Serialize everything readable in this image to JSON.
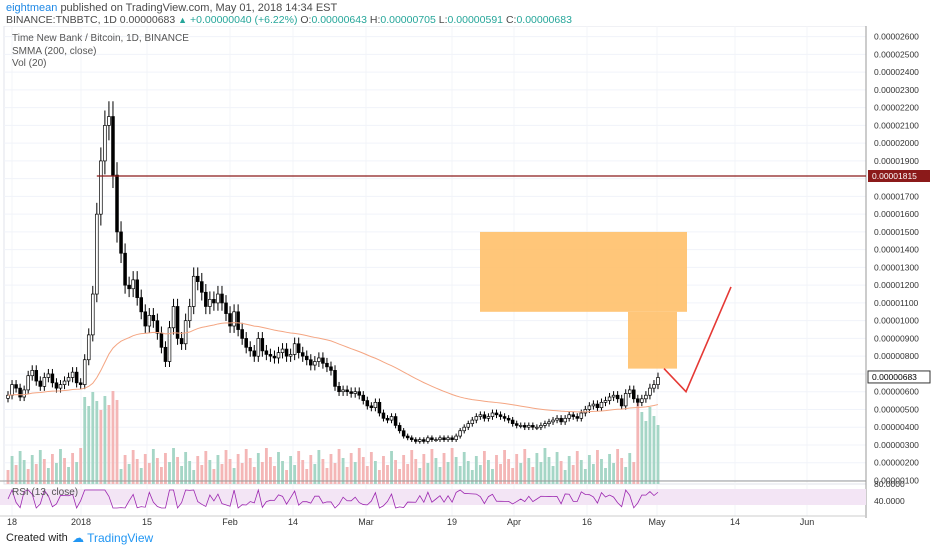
{
  "header": {
    "author": "eightmean",
    "published_text": "published on TradingView.com, May 01, 2018 14:34 EST",
    "symbol_line_prefix": "BINANCE:TNBBTC, 1D  0.00000683",
    "change_text": "+0.00000040 (+6.22%)",
    "o_label": "O:",
    "o_value": "0.00000643",
    "h_label": "H:",
    "h_value": "0.00000705",
    "l_label": "L:",
    "l_value": "0.00000591",
    "c_label": "C:",
    "c_value": "0.00000683"
  },
  "legend": {
    "title": "Time New Bank / Bitcoin, 1D, BINANCE",
    "smma": "SMMA (200, close)",
    "vol": "Vol (20)",
    "rsi": "RSI (13, close)"
  },
  "footer": {
    "created_with": "Created with",
    "brand": "TradingView"
  },
  "colors": {
    "bull_candle": "#ffffff",
    "bear_candle": "#000000",
    "candle_outline": "#000000",
    "vol_up": "#a5d6c6",
    "vol_down": "#f4b6b6",
    "smma": "#f4a582",
    "resistance": "#8b1a1a",
    "zone": "#ffc06a",
    "projection": "#e53935",
    "rsi_line": "#9c27b0",
    "rsi_band": "#f3e5f5",
    "last_price_bg": "#ffffff"
  },
  "chart_data": {
    "type": "candlestick",
    "title": "Time New Bank / Bitcoin, 1D, BINANCE",
    "y_axis": {
      "ticks": [
        "0.00002600",
        "0.00002500",
        "0.00002400",
        "0.00002300",
        "0.00002200",
        "0.00002100",
        "0.00002000",
        "0.00001900",
        "0.00001800",
        "0.00001700",
        "0.00001600",
        "0.00001500",
        "0.00001400",
        "0.00001300",
        "0.00001200",
        "0.00001100",
        "0.00001000",
        "0.00000900",
        "0.00000800",
        "0.00000700",
        "0.00000600",
        "0.00000500",
        "0.00000400",
        "0.00000300",
        "0.00000200",
        "0.00000100"
      ],
      "range": [
        8e-07,
        2.66e-05
      ]
    },
    "x_axis": {
      "ticks": [
        "18",
        "2018",
        "15",
        "Feb",
        "14",
        "Mar",
        "19",
        "Apr",
        "16",
        "May",
        "14",
        "Jun"
      ]
    },
    "resistance_level": {
      "value": 1.815e-05,
      "label": "0.00001815"
    },
    "last_price": {
      "value": 6.83e-06,
      "label": "0.00000683"
    },
    "drawn_zone": {
      "upper_box": [
        1.05e-05,
        1.5e-05
      ],
      "lower_box": [
        7.3e-06,
        1.05e-05
      ]
    },
    "projection_path": [
      7.3e-06,
      6e-06,
      1.19e-05
    ],
    "closes": [
      5.8e-06,
      6.4e-06,
      6.2e-06,
      5.7e-06,
      6.1e-06,
      6.9e-06,
      7.2e-06,
      6.6e-06,
      6.3e-06,
      6.8e-06,
      7e-06,
      6.5e-06,
      6.2e-06,
      6.4e-06,
      6.6e-06,
      6.8e-06,
      7.1e-06,
      6.5e-06,
      6.4e-06,
      7.8e-06,
      9.2e-06,
      1.15e-05,
      1.6e-05,
      1.9e-05,
      2.1e-05,
      2.15e-05,
      1.82e-05,
      1.5e-05,
      1.38e-05,
      1.2e-05,
      1.18e-05,
      1.23e-05,
      1.13e-05,
      1.05e-05,
      9.7e-06,
      1.03e-05,
      1e-05,
      9.3e-06,
      8.5e-06,
      7.7e-06,
      9.6e-06,
      1.08e-05,
      9e-06,
      8.7e-06,
      1e-05,
      1.08e-05,
      1.25e-05,
      1.22e-05,
      1.16e-05,
      1.08e-05,
      1.12e-05,
      1.1e-05,
      1.15e-05,
      1.1e-05,
      1.04e-05,
      9.7e-06,
      1.05e-05,
      9.5e-06,
      9e-06,
      8.5e-06,
      8.3e-06,
      8e-06,
      9e-06,
      8.3e-06,
      8.1e-06,
      8e-06,
      7.9e-06,
      8.2e-06,
      8.4e-06,
      8e-06,
      8.1e-06,
      8.7e-06,
      8.2e-06,
      8e-06,
      7.8e-06,
      7.5e-06,
      7.7e-06,
      7.9e-06,
      7.6e-06,
      7.4e-06,
      7.2e-06,
      6.3e-06,
      6e-06,
      6.1e-06,
      6e-06,
      5.9e-06,
      6e-06,
      5.8e-06,
      5.5e-06,
      5.2e-06,
      5.1e-06,
      5.4e-06,
      4.8e-06,
      4.5e-06,
      4.4e-06,
      4.6e-06,
      4.1e-06,
      3.8e-06,
      3.5e-06,
      3.4e-06,
      3.3e-06,
      3.2e-06,
      3.3e-06,
      3.2e-06,
      3.4e-06,
      3.3e-06,
      3.3e-06,
      3.4e-06,
      3.3e-06,
      3.4e-06,
      3.3e-06,
      3.5e-06,
      3.8e-06,
      4e-06,
      4.2e-06,
      4.4e-06,
      4.6e-06,
      4.7e-06,
      4.5e-06,
      4.6e-06,
      4.8e-06,
      4.7e-06,
      4.6e-06,
      4.5e-06,
      4.4e-06,
      4.2e-06,
      4.1e-06,
      4.1e-06,
      4e-06,
      4.1e-06,
      4e-06,
      4e-06,
      4.1e-06,
      4.2e-06,
      4.3e-06,
      4.4e-06,
      4.5e-06,
      4.3e-06,
      4.5e-06,
      4.7e-06,
      4.6e-06,
      4.5e-06,
      4.8e-06,
      5e-06,
      5.2e-06,
      5.3e-06,
      5.1e-06,
      5.4e-06,
      5.5e-06,
      5.7e-06,
      5.8e-06,
      5.6e-06,
      5.2e-06,
      5.9e-06,
      6.1e-06,
      5.6e-06,
      5.4e-06,
      5.6e-06,
      5.8e-06,
      6.2e-06,
      6.4e-06,
      6.8e-06
    ],
    "volume_direction": [
      "d",
      "u",
      "d",
      "u",
      "u",
      "d",
      "u",
      "d",
      "u",
      "d",
      "u",
      "d",
      "u",
      "u",
      "d",
      "u",
      "d",
      "u",
      "d",
      "u",
      "u",
      "u",
      "u",
      "d",
      "u",
      "d",
      "d",
      "d",
      "u",
      "d",
      "u",
      "d",
      "d",
      "u",
      "d",
      "d",
      "u",
      "d",
      "d",
      "d",
      "u",
      "u",
      "d",
      "u",
      "u",
      "u",
      "u",
      "d",
      "d",
      "d",
      "u",
      "d",
      "u",
      "d",
      "d",
      "d",
      "u",
      "d",
      "d",
      "d",
      "d",
      "d",
      "u",
      "d",
      "d",
      "d",
      "d",
      "u",
      "u",
      "d",
      "u",
      "u",
      "d",
      "d",
      "d",
      "d",
      "u",
      "u",
      "d",
      "d",
      "d",
      "d",
      "d",
      "u",
      "d",
      "d",
      "u",
      "d",
      "d",
      "d",
      "d",
      "u",
      "d",
      "d",
      "d",
      "u",
      "d",
      "d",
      "d",
      "d",
      "d",
      "d",
      "u",
      "d",
      "u",
      "d",
      "u",
      "u",
      "d",
      "u",
      "d",
      "u",
      "u",
      "u",
      "u",
      "u",
      "u",
      "u",
      "d",
      "u",
      "u",
      "d",
      "d",
      "d",
      "d",
      "d",
      "d",
      "u",
      "d",
      "u",
      "d",
      "u",
      "u",
      "u",
      "u",
      "u",
      "u",
      "d",
      "u",
      "u",
      "d",
      "d",
      "u",
      "u",
      "u",
      "u",
      "d",
      "u",
      "u",
      "u",
      "u",
      "d",
      "d",
      "u",
      "u",
      "d",
      "d",
      "u",
      "u",
      "u",
      "u",
      "u"
    ]
  }
}
